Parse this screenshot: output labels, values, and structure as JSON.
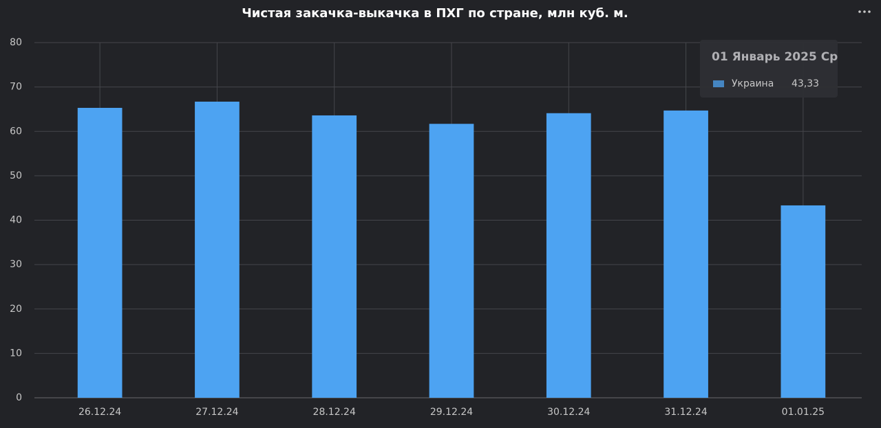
{
  "chart_data": {
    "type": "bar",
    "title": "Чистая закачка-выкачка в ПХГ по стране, млн куб. м.",
    "categories": [
      "26.12.24",
      "27.12.24",
      "28.12.24",
      "29.12.24",
      "30.12.24",
      "31.12.24",
      "01.01.25"
    ],
    "series": [
      {
        "name": "Украина",
        "color": "#4da3f2",
        "values": [
          65.3,
          66.7,
          63.6,
          61.7,
          64.1,
          64.7,
          43.33
        ],
        "value_labels": [
          null,
          null,
          null,
          null,
          null,
          null,
          "43,33"
        ]
      }
    ],
    "ylim": [
      0,
      80
    ],
    "yticks": [
      0,
      10,
      20,
      30,
      40,
      50,
      60,
      70,
      80
    ],
    "grid": true,
    "tooltip": {
      "title": "01 Январь 2025 Ср",
      "index": 6
    }
  }
}
